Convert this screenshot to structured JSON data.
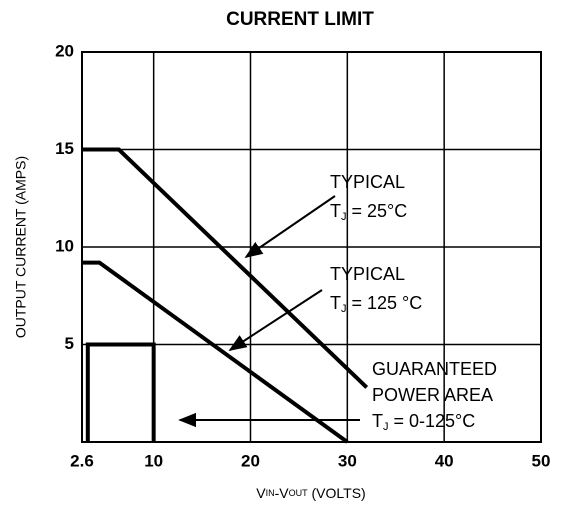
{
  "chart_data": {
    "type": "line",
    "title": "CURRENT LIMIT",
    "ylabel": "OUTPUT CURRENT (AMPS)",
    "xlabel": {
      "parts": [
        {
          "text": "V"
        },
        {
          "text": "IN",
          "sub": true
        },
        {
          "text": "-V"
        },
        {
          "text": "OUT",
          "sub": true
        },
        {
          "text": " (VOLTS)"
        }
      ]
    },
    "xlim": [
      2.6,
      50
    ],
    "ylim": [
      0,
      20
    ],
    "xticks": [
      2.6,
      10,
      20,
      30,
      40,
      50
    ],
    "yticks": [
      5,
      10,
      15,
      20
    ],
    "grid": true,
    "color": "#000000",
    "series": [
      {
        "x": [
          2.6,
          6.4,
          32
        ],
        "values": [
          15,
          15,
          2.8
        ]
      },
      {
        "x": [
          2.6,
          4.4,
          30
        ],
        "values": [
          9.2,
          9.2,
          0
        ]
      },
      {
        "x": [
          3.2,
          3.2,
          10,
          10
        ],
        "values": [
          0,
          5,
          5,
          0
        ]
      }
    ],
    "annotations": [
      {
        "lines": [
          {
            "text": "TYPICAL"
          },
          {
            "text": "T",
            "sub": "J",
            "tail": " = 25°C"
          }
        ]
      },
      {
        "lines": [
          {
            "text": "TYPICAL"
          },
          {
            "text": "T",
            "sub": "J",
            "tail": " = 125 °C"
          }
        ]
      },
      {
        "lines": [
          {
            "text": "GUARANTEED"
          },
          {
            "text": "POWER AREA"
          },
          {
            "text": "T",
            "sub": "J",
            "tail": " 0-125°C",
            "eq": " ="
          }
        ]
      }
    ]
  }
}
